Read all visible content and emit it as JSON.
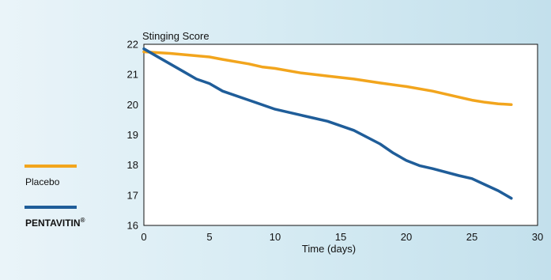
{
  "chart_data": {
    "type": "line",
    "ylabel": "Stinging Score",
    "xlabel": "Time (days)",
    "xlim": [
      0,
      30
    ],
    "ylim": [
      16,
      22
    ],
    "x_ticks": [
      0,
      5,
      10,
      15,
      20,
      25,
      30
    ],
    "y_ticks": [
      16,
      17,
      18,
      19,
      20,
      21,
      22
    ],
    "grid": true,
    "legend_position": "left",
    "series": [
      {
        "name": "Placebo",
        "color": "#f2a51d",
        "x": [
          0,
          2,
          4,
          5,
          6,
          8,
          9,
          10,
          12,
          14,
          16,
          18,
          20,
          22,
          24,
          25,
          26,
          27,
          28
        ],
        "y": [
          21.75,
          21.7,
          21.62,
          21.58,
          21.5,
          21.35,
          21.25,
          21.2,
          21.05,
          20.95,
          20.85,
          20.72,
          20.6,
          20.45,
          20.25,
          20.15,
          20.08,
          20.03,
          20.0
        ]
      },
      {
        "name": "PENTAVITIN",
        "name_suffix": "®",
        "color": "#1f5d99",
        "x": [
          0,
          1,
          2,
          3,
          4,
          5,
          6,
          8,
          10,
          12,
          13,
          14,
          16,
          18,
          19,
          20,
          21,
          22,
          24,
          25,
          26,
          27,
          28
        ],
        "y": [
          21.85,
          21.6,
          21.35,
          21.1,
          20.85,
          20.7,
          20.45,
          20.15,
          19.85,
          19.65,
          19.55,
          19.45,
          19.15,
          18.7,
          18.4,
          18.15,
          17.98,
          17.88,
          17.65,
          17.55,
          17.35,
          17.15,
          16.9
        ]
      }
    ]
  }
}
